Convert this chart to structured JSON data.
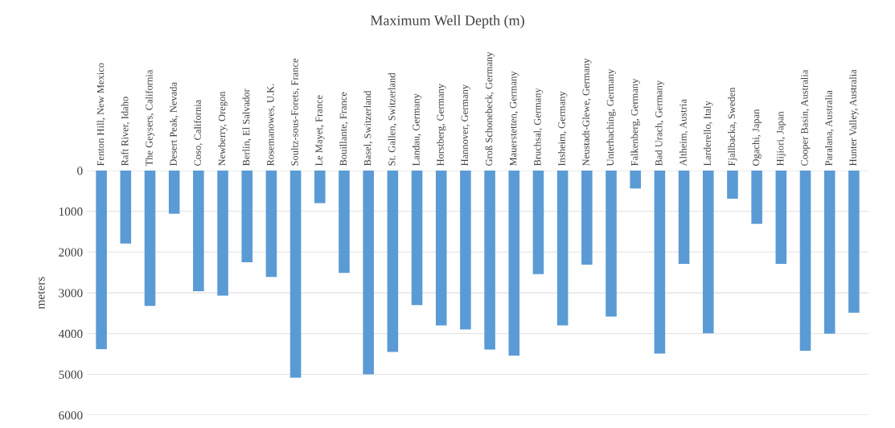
{
  "chart_data": {
    "type": "bar",
    "title": "Maximum Well Depth (m)",
    "ylabel": "meters",
    "categories": [
      "Fenton Hill, New Mexico",
      "Raft River, Idaho",
      "The Geysers, California",
      "Desert Peak, Nevada",
      "Coso, California",
      "Newberry, Oregon",
      "Berlin, El Salvador",
      "Rosemanowes, U.K.",
      "Soultz-sous-Forets, France",
      "Le Mayet, France",
      "Bouillante, France",
      "Basel, Switzerland",
      "St. Gallen, Switzerland",
      "Landau, Germany",
      "Horstberg, Germany",
      "Hannover, Germany",
      "Groß Schonebeck, Germany",
      "Mauerstetten, Germany",
      "Bruchsal, Germany",
      "Insheim, Germany",
      "Neustadt-Glewe, Germany",
      "Unterhaching, Germany",
      "Falkenberg, Germany",
      "Bad Urach, Germany",
      "Altheim, Austria",
      "Larderello, Italy",
      "Fjallbacka, Sweden",
      "Ogachi, Japan",
      "Hijiori, Japan",
      "Cooper Basin, Australia",
      "Paralana, Australia",
      "Hunter Valley, Australia"
    ],
    "values": [
      4380,
      1790,
      3320,
      1060,
      2960,
      3070,
      2250,
      2610,
      5080,
      800,
      2510,
      5000,
      4450,
      3300,
      3800,
      3900,
      4390,
      4540,
      2540,
      3800,
      2310,
      3580,
      440,
      4490,
      2290,
      3990,
      690,
      1310,
      2290,
      4420,
      4000,
      3490
    ],
    "color": "#5b9bd5",
    "ylim": [
      6000,
      0
    ],
    "yticks": [
      0,
      1000,
      2000,
      3000,
      4000,
      5000,
      6000
    ],
    "grid": "y"
  }
}
